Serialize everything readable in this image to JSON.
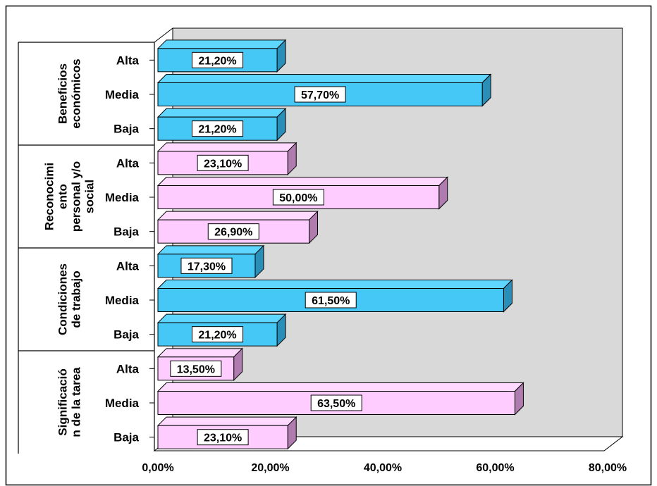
{
  "chart_data": {
    "type": "bar",
    "orientation": "horizontal",
    "xlim": [
      0,
      80
    ],
    "x_ticks": [
      "0,00%",
      "20,00%",
      "40,00%",
      "60,00%",
      "80,00%"
    ],
    "colors": {
      "blue": "#45c8f5",
      "pink": "#ffccff",
      "wall": "#d9d9d9"
    },
    "groups": [
      {
        "name_lines": [
          "Beneficios",
          "económicos"
        ],
        "color": "blue",
        "bars": [
          {
            "category": "Alta",
            "value": 21.2,
            "label": "21,20%"
          },
          {
            "category": "Media",
            "value": 57.7,
            "label": "57,70%"
          },
          {
            "category": "Baja",
            "value": 21.2,
            "label": "21,20%"
          }
        ]
      },
      {
        "name_lines": [
          "Reconocimi",
          "ento",
          "personal y/o",
          "social"
        ],
        "color": "pink",
        "bars": [
          {
            "category": "Alta",
            "value": 23.1,
            "label": "23,10%"
          },
          {
            "category": "Media",
            "value": 50.0,
            "label": "50,00%"
          },
          {
            "category": "Baja",
            "value": 26.9,
            "label": "26,90%"
          }
        ]
      },
      {
        "name_lines": [
          "Condiciones",
          "de trabajo"
        ],
        "color": "blue",
        "bars": [
          {
            "category": "Alta",
            "value": 17.3,
            "label": "17,30%"
          },
          {
            "category": "Media",
            "value": 61.5,
            "label": "61,50%"
          },
          {
            "category": "Baja",
            "value": 21.2,
            "label": "21,20%"
          }
        ]
      },
      {
        "name_lines": [
          "Significació",
          "n de la tarea"
        ],
        "color": "pink",
        "bars": [
          {
            "category": "Alta",
            "value": 13.5,
            "label": "13,50%"
          },
          {
            "category": "Media",
            "value": 63.5,
            "label": "63,50%"
          },
          {
            "category": "Baja",
            "value": 23.1,
            "label": "23,10%"
          }
        ]
      }
    ]
  }
}
